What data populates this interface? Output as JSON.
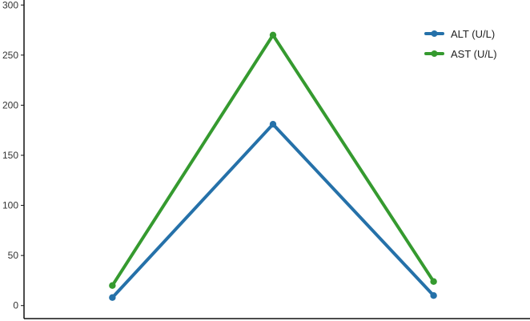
{
  "chart_data": {
    "type": "line",
    "title": "",
    "xlabel": "",
    "ylabel": "",
    "x": [
      1,
      2,
      3
    ],
    "xlim": [
      0.45,
      3.6
    ],
    "ylim": [
      -13,
      305
    ],
    "yticks": [
      0,
      50,
      100,
      150,
      200,
      250,
      300
    ],
    "grid": false,
    "legend_position": "top-right",
    "series": [
      {
        "name": "ALT (U/L)",
        "color": "#2571a9",
        "values": [
          8,
          181,
          10
        ]
      },
      {
        "name": "AST (U/L)",
        "color": "#359a2f",
        "values": [
          20,
          270,
          24
        ]
      }
    ]
  }
}
